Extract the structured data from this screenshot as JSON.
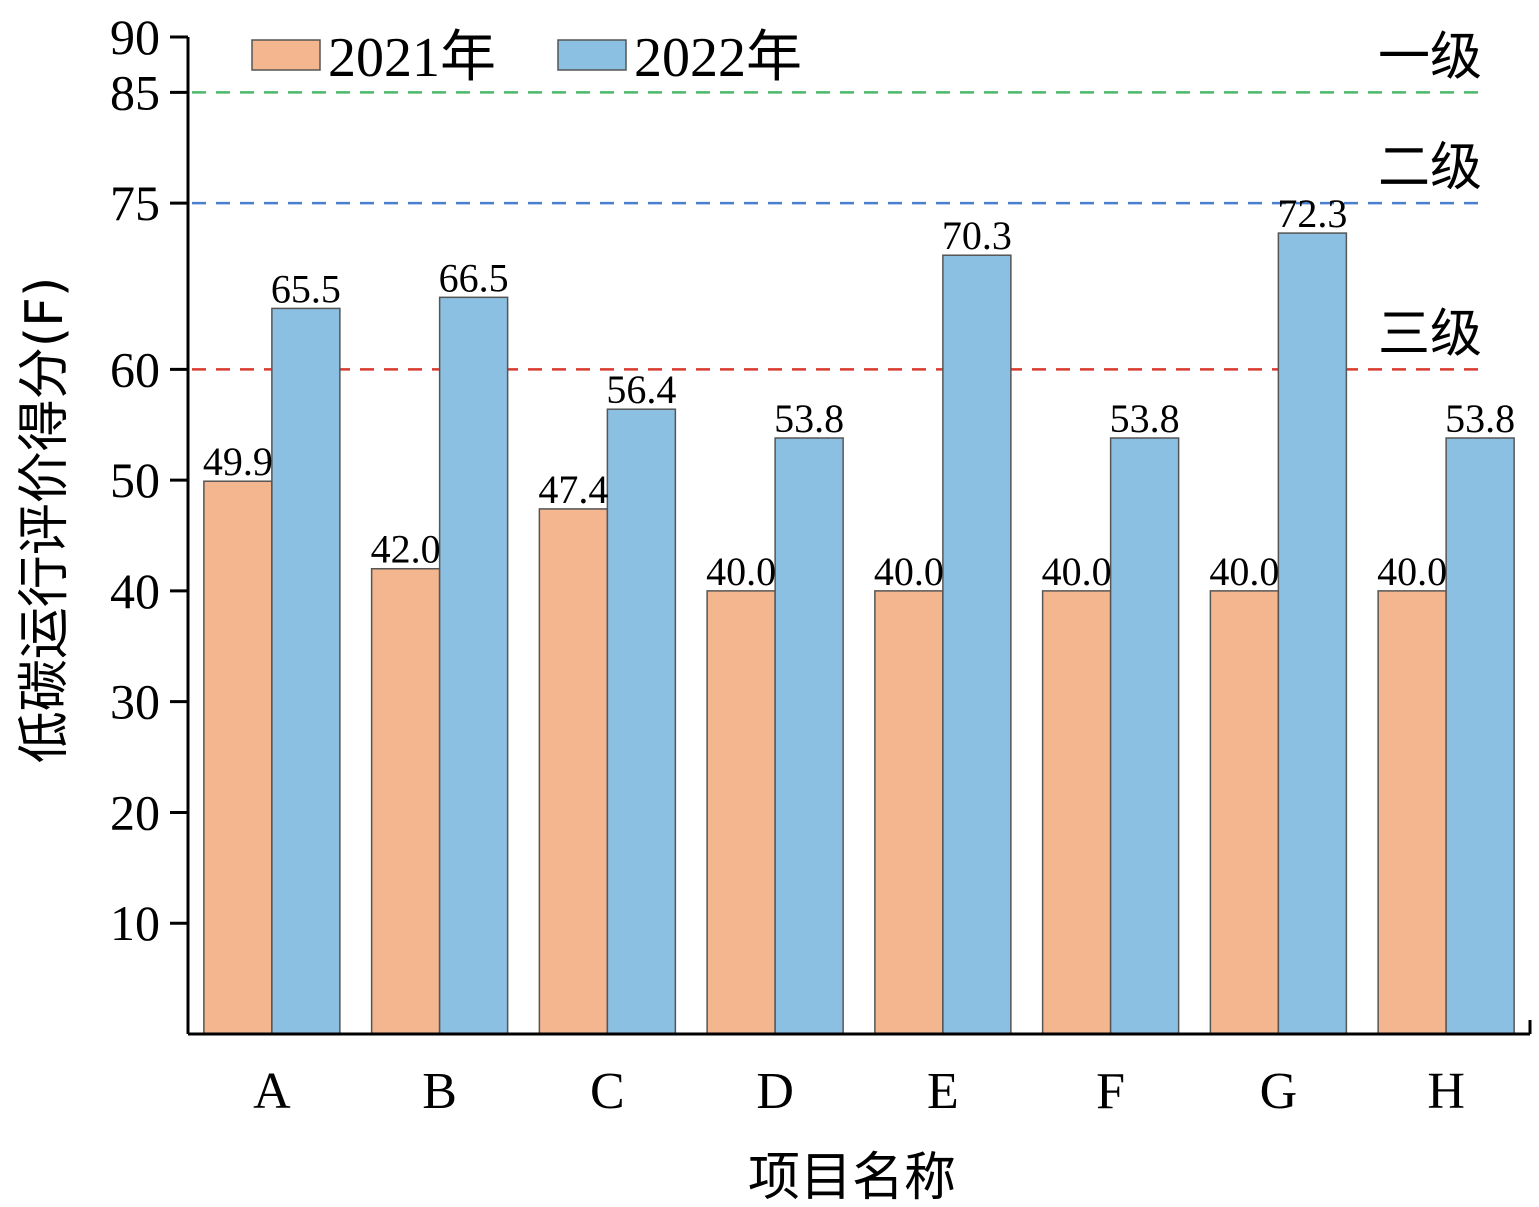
{
  "chart_data": {
    "type": "bar",
    "xlabel": "项目名称",
    "ylabel": "低碳运行评价得分(F)",
    "ylim": [
      0,
      90
    ],
    "yticks": [
      10,
      20,
      30,
      40,
      50,
      60,
      75,
      85,
      90
    ],
    "categories": [
      "A",
      "B",
      "C",
      "D",
      "E",
      "F",
      "G",
      "H"
    ],
    "series": [
      {
        "name": "2021年",
        "color": "#F4B68E",
        "values": [
          49.9,
          42.0,
          47.4,
          40.0,
          40.0,
          40.0,
          40.0,
          40.0
        ],
        "labels": [
          "49.9",
          "42.0",
          "47.4",
          "40.0",
          "40.0",
          "40.0",
          "40.0",
          "40.0"
        ]
      },
      {
        "name": "2022年",
        "color": "#8CC0E2",
        "values": [
          65.5,
          66.5,
          56.4,
          53.8,
          70.3,
          53.8,
          72.3,
          53.8
        ],
        "labels": [
          "65.5",
          "66.5",
          "56.4",
          "53.8",
          "70.3",
          "53.8",
          "72.3",
          "53.8"
        ]
      }
    ],
    "reference_lines": [
      {
        "value": 85,
        "label": "一级",
        "color": "#4CB86A"
      },
      {
        "value": 75,
        "label": "二级",
        "color": "#4A7FD0"
      },
      {
        "value": 60,
        "label": "三级",
        "color": "#D93A2E"
      }
    ],
    "legend_position": "top-left",
    "grid": false
  }
}
